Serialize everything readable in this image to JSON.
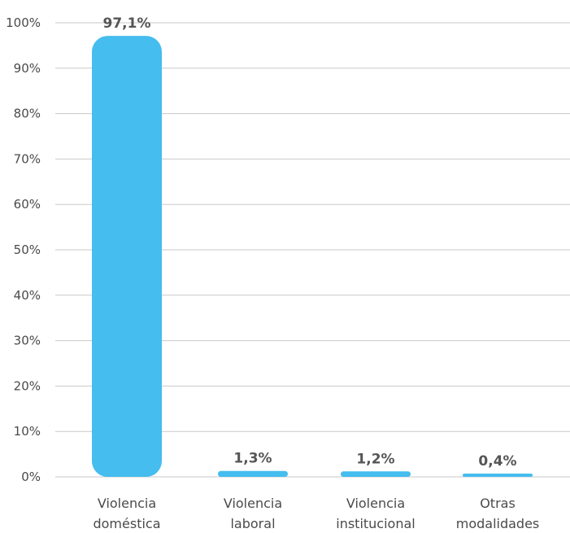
{
  "chart_data": {
    "type": "bar",
    "categories": [
      [
        "Violencia",
        "doméstica"
      ],
      [
        "Violencia",
        "laboral"
      ],
      [
        "Violencia",
        "institucional"
      ],
      [
        "Otras",
        "modalidades"
      ]
    ],
    "values": [
      97.1,
      1.3,
      1.2,
      0.4
    ],
    "value_labels": [
      "97,1%",
      "1,3%",
      "1,2%",
      "0,4%"
    ],
    "ylim": [
      0,
      100
    ],
    "yticks": [
      0,
      10,
      20,
      30,
      40,
      50,
      60,
      70,
      80,
      90,
      100
    ],
    "ytick_labels": [
      "0%",
      "10%",
      "20%",
      "30%",
      "40%",
      "50%",
      "60%",
      "70%",
      "80%",
      "90%",
      "100%"
    ],
    "grid": true,
    "legend": false,
    "bar_color": "#45bdee",
    "grid_color": "#c9c9c9",
    "title": "",
    "xlabel": "",
    "ylabel": ""
  }
}
